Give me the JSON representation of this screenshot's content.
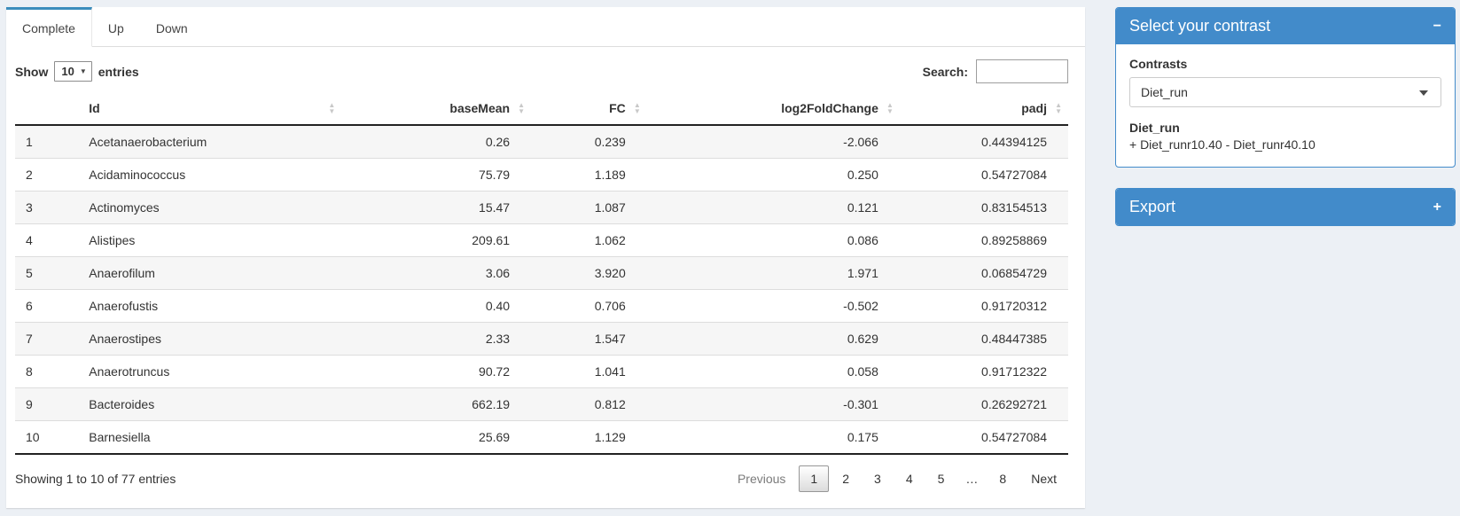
{
  "colors": {
    "accent": "#3c8dbc",
    "panel_blue": "#428bca",
    "page_bg": "#ecf0f5"
  },
  "tabs": {
    "items": [
      {
        "label": "Complete",
        "active": true
      },
      {
        "label": "Up",
        "active": false
      },
      {
        "label": "Down",
        "active": false
      }
    ]
  },
  "toolbar": {
    "show_label": "Show",
    "length_value": "10",
    "entries_label": "entries",
    "search_label": "Search:",
    "search_value": ""
  },
  "table": {
    "columns": [
      {
        "key": "rownum",
        "label": "",
        "align": "left",
        "sortable": false,
        "width": "6%"
      },
      {
        "key": "id",
        "label": "Id",
        "align": "left",
        "sortable": true,
        "width": "25%"
      },
      {
        "key": "basemean",
        "label": "baseMean",
        "align": "right",
        "sortable": true,
        "width": "18%"
      },
      {
        "key": "fc",
        "label": "FC",
        "align": "right",
        "sortable": true,
        "width": "11%"
      },
      {
        "key": "log2foldchange",
        "label": "log2FoldChange",
        "align": "right",
        "sortable": true,
        "width": "24%"
      },
      {
        "key": "padj",
        "label": "padj",
        "align": "right",
        "sortable": true,
        "width": "16%"
      }
    ],
    "rows": [
      [
        "1",
        "Acetanaerobacterium",
        "0.26",
        "0.239",
        "-2.066",
        "0.44394125"
      ],
      [
        "2",
        "Acidaminococcus",
        "75.79",
        "1.189",
        "0.250",
        "0.54727084"
      ],
      [
        "3",
        "Actinomyces",
        "15.47",
        "1.087",
        "0.121",
        "0.83154513"
      ],
      [
        "4",
        "Alistipes",
        "209.61",
        "1.062",
        "0.086",
        "0.89258869"
      ],
      [
        "5",
        "Anaerofilum",
        "3.06",
        "3.920",
        "1.971",
        "0.06854729"
      ],
      [
        "6",
        "Anaerofustis",
        "0.40",
        "0.706",
        "-0.502",
        "0.91720312"
      ],
      [
        "7",
        "Anaerostipes",
        "2.33",
        "1.547",
        "0.629",
        "0.48447385"
      ],
      [
        "8",
        "Anaerotruncus",
        "90.72",
        "1.041",
        "0.058",
        "0.91712322"
      ],
      [
        "9",
        "Bacteroides",
        "662.19",
        "0.812",
        "-0.301",
        "0.26292721"
      ],
      [
        "10",
        "Barnesiella",
        "25.69",
        "1.129",
        "0.175",
        "0.54727084"
      ]
    ]
  },
  "footer": {
    "info": "Showing 1 to 10 of 77 entries",
    "pages": [
      "Previous",
      "1",
      "2",
      "3",
      "4",
      "5",
      "…",
      "8",
      "Next"
    ],
    "active_page": "1",
    "disabled_pages": [
      "Previous"
    ]
  },
  "contrast_panel": {
    "title": "Select your contrast",
    "collapse_icon": "−",
    "contrasts_label": "Contrasts",
    "selected_contrast": "Diet_run",
    "detail_name": "Diet_run",
    "detail_formula": "+ Diet_runr10.40 - Diet_runr40.10"
  },
  "export_panel": {
    "title": "Export",
    "collapse_icon": "+"
  }
}
